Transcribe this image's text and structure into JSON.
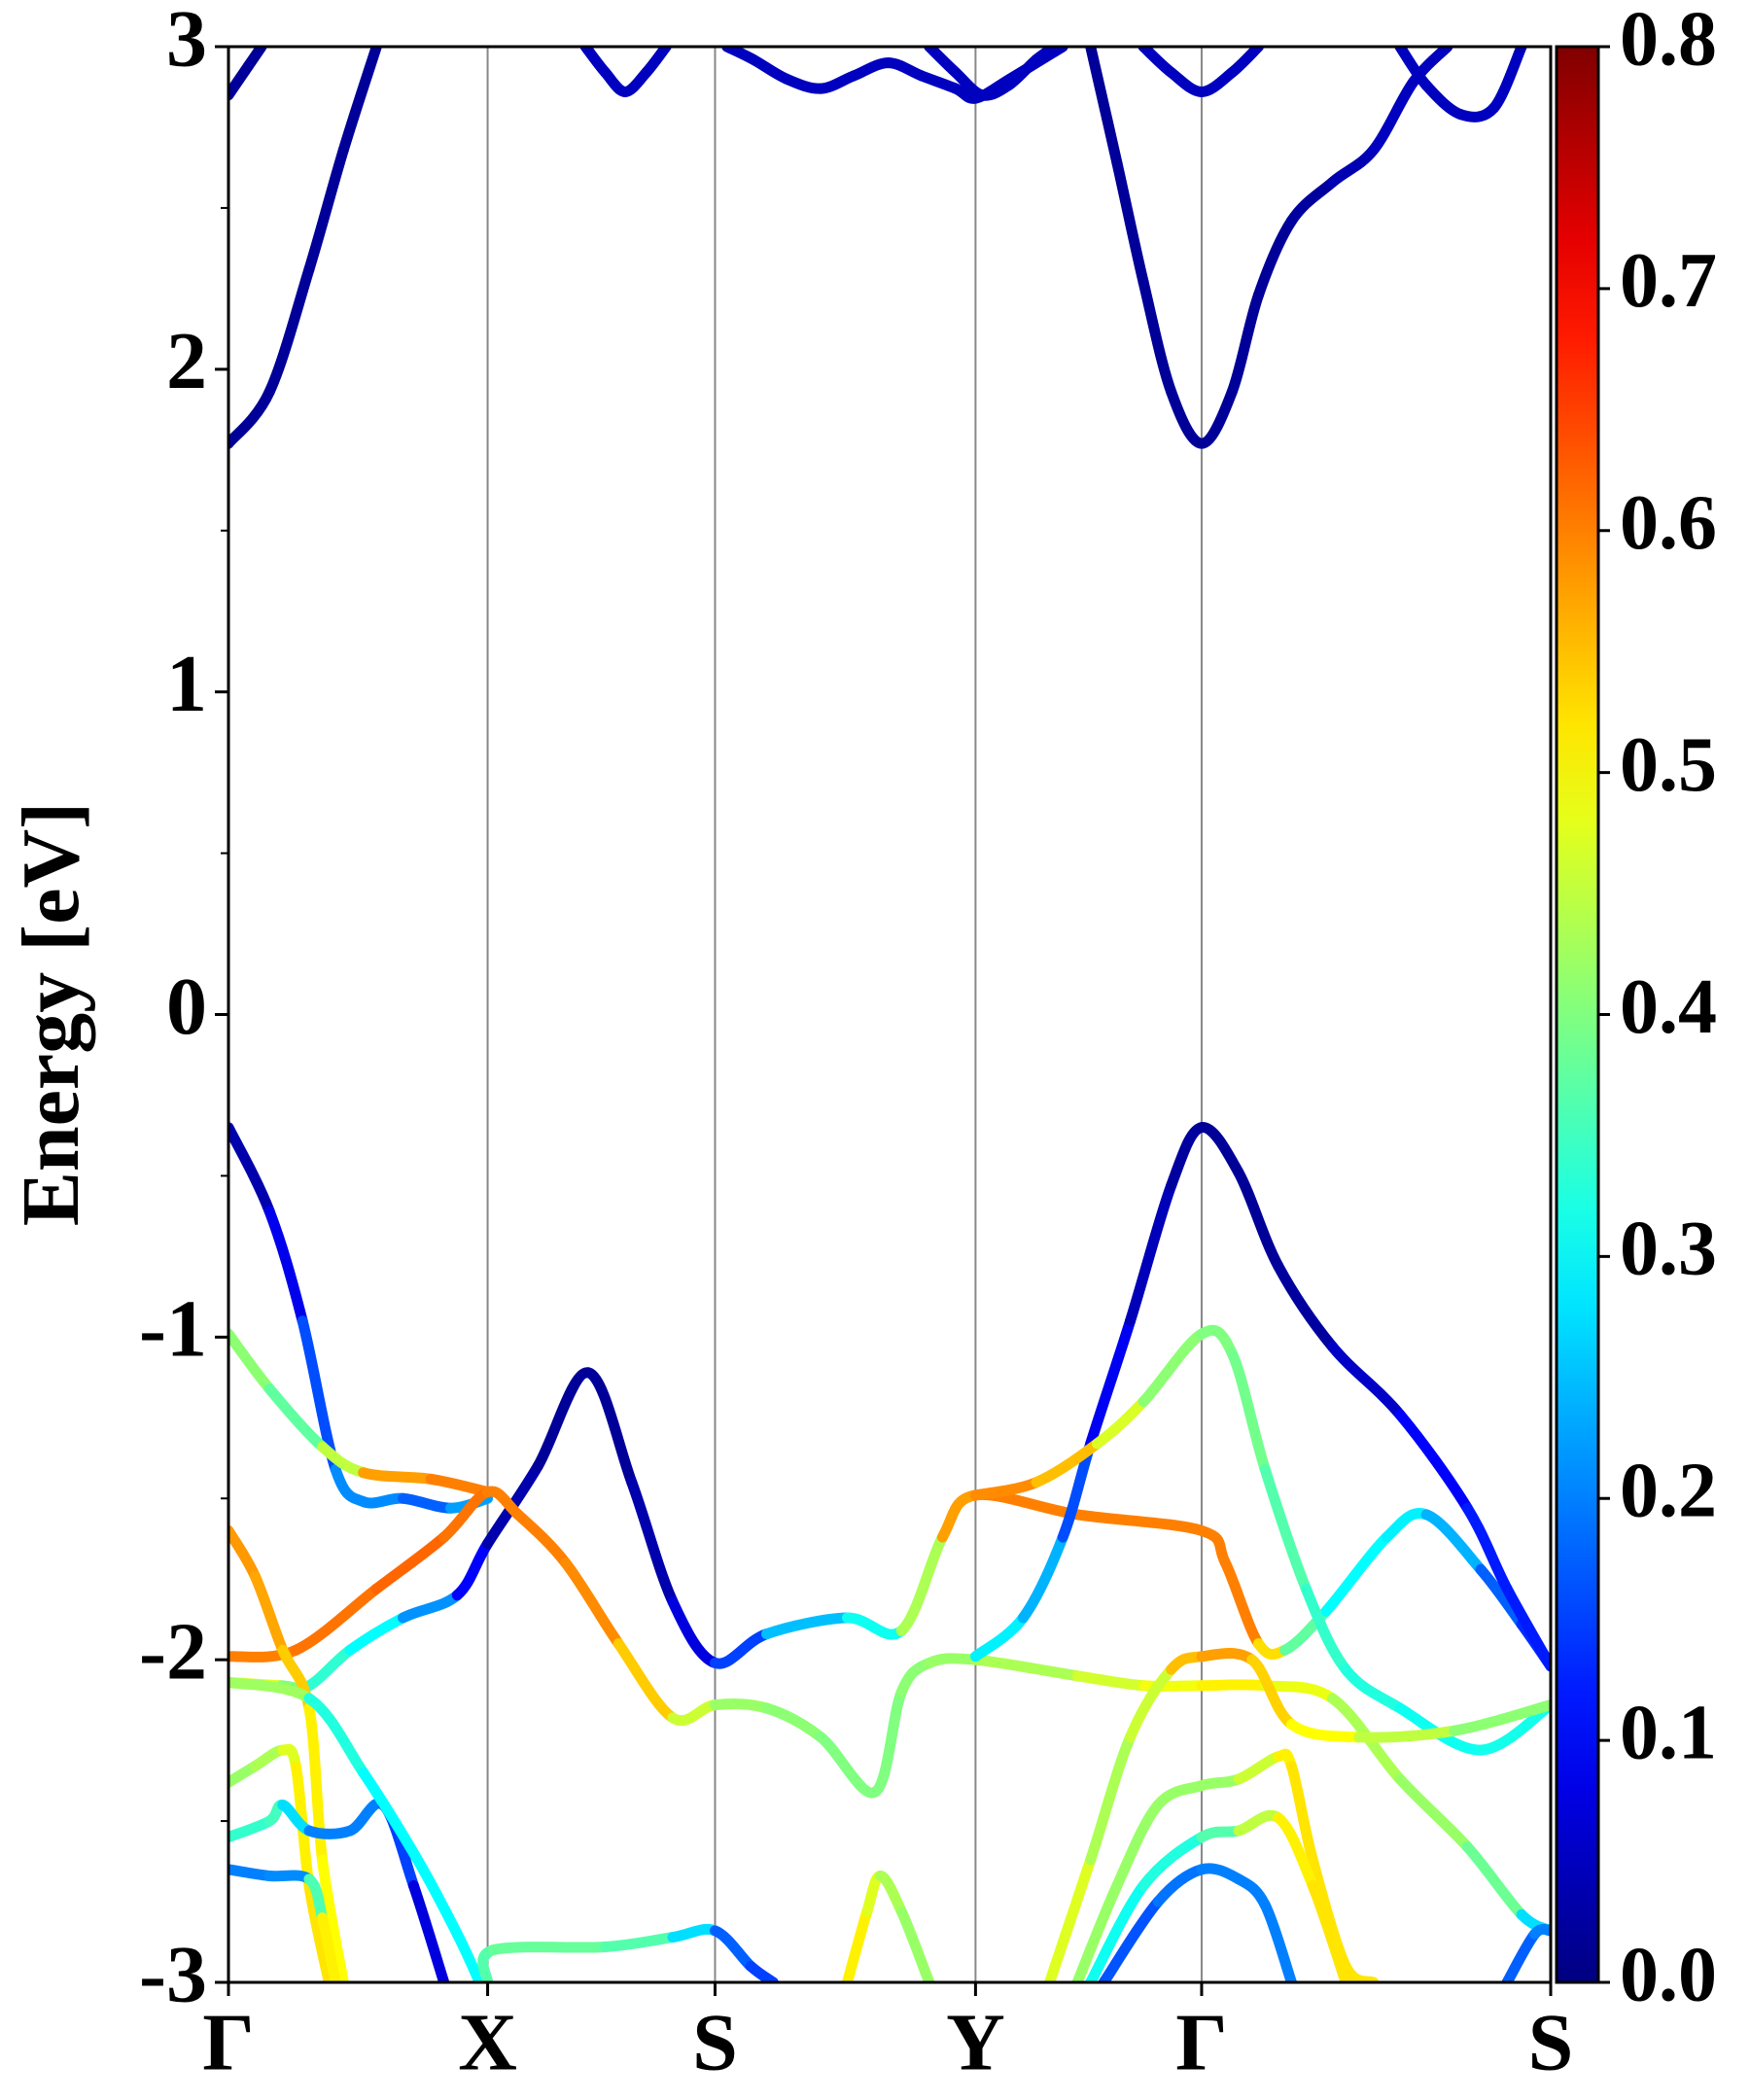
{
  "chart_data": {
    "type": "band-structure",
    "ylabel": "Energy [eV]",
    "xlim": [
      0,
      1
    ],
    "xticks": [
      {
        "value": 0,
        "label": "Γ"
      },
      {
        "value": 0.196,
        "label": "X"
      },
      {
        "value": 0.368,
        "label": "S"
      },
      {
        "value": 0.565,
        "label": "Y"
      },
      {
        "value": 0.736,
        "label": "Γ"
      },
      {
        "value": 1,
        "label": "S"
      }
    ],
    "ylim": [
      -3,
      3
    ],
    "yticks": [
      -3,
      -2,
      -1,
      0,
      1,
      2,
      3
    ],
    "yminorticks": [
      -2.5,
      -1.5,
      -0.5,
      0.5,
      1.5,
      2.5
    ],
    "grid": true,
    "colormap": "jet",
    "colorbar": {
      "lim": [
        0,
        0.8
      ],
      "ticks": [
        {
          "value": 0,
          "label": "0.0"
        },
        0.1,
        0.2,
        0.3,
        0.4,
        0.5,
        0.6,
        0.7,
        0.8
      ]
    },
    "series": [
      {
        "x": [
          0,
          0.031,
          0.061,
          0.087,
          0.112
        ],
        "values": [
          1.77,
          1.93,
          2.31,
          2.68,
          3.0
        ],
        "weights": [
          0.02,
          0.02,
          0.02,
          0.02,
          0.02
        ]
      },
      {
        "x": [
          0,
          0.015,
          0.025
        ],
        "values": [
          2.85,
          2.94,
          3.0
        ],
        "weights": [
          0.02,
          0.02,
          0.02
        ]
      },
      {
        "x": [
          0.27,
          0.285,
          0.3,
          0.316,
          0.331
        ],
        "values": [
          3.0,
          2.92,
          2.86,
          2.92,
          3.0
        ],
        "weights": [
          0.05,
          0.05,
          0.05,
          0.05,
          0.05
        ]
      },
      {
        "x": [
          0.377,
          0.397,
          0.422,
          0.448,
          0.473,
          0.499,
          0.524,
          0.55,
          0.565,
          0.591,
          0.631
        ],
        "values": [
          3.0,
          2.96,
          2.9,
          2.87,
          2.91,
          2.95,
          2.91,
          2.87,
          2.84,
          2.9,
          3.0
        ],
        "weights": [
          0.05,
          0.05,
          0.05,
          0.05,
          0.05,
          0.05,
          0.05,
          0.05,
          0.05,
          0.05,
          0.05
        ]
      },
      {
        "x": [
          0.53,
          0.55,
          0.57,
          0.59,
          0.611,
          0.625
        ],
        "values": [
          3.0,
          2.92,
          2.85,
          2.88,
          2.96,
          3.0
        ],
        "weights": [
          0.05,
          0.05,
          0.05,
          0.05,
          0.05,
          0.05
        ]
      },
      {
        "x": [
          0.652,
          0.672,
          0.692,
          0.713,
          0.736,
          0.759,
          0.779,
          0.804,
          0.835,
          0.866,
          0.896,
          0.922
        ],
        "values": [
          3.0,
          2.64,
          2.27,
          1.93,
          1.77,
          1.93,
          2.23,
          2.46,
          2.58,
          2.68,
          2.89,
          3.0
        ],
        "weights": [
          0.02,
          0.02,
          0.02,
          0.02,
          0.02,
          0.02,
          0.02,
          0.02,
          0.03,
          0.05,
          0.05,
          0.05
        ]
      },
      {
        "x": [
          0.692,
          0.713,
          0.736,
          0.759,
          0.779
        ],
        "values": [
          3.0,
          2.92,
          2.86,
          2.92,
          3.0
        ],
        "weights": [
          0.05,
          0.05,
          0.05,
          0.05,
          0.05
        ]
      },
      {
        "x": [
          0.886,
          0.906,
          0.932,
          0.957,
          0.978
        ],
        "values": [
          3.0,
          2.88,
          2.79,
          2.81,
          3.0
        ],
        "weights": [
          0.05,
          0.05,
          0.05,
          0.05,
          0.05
        ]
      },
      {
        "x": [
          0,
          0.031,
          0.056,
          0.081,
          0.102,
          0.132,
          0.168,
          0.196
        ],
        "values": [
          -0.35,
          -0.61,
          -0.95,
          -1.41,
          -1.51,
          -1.5,
          -1.53,
          -1.5
        ],
        "weights": [
          0.02,
          0.05,
          0.12,
          0.2,
          0.22,
          0.2,
          0.15,
          0.3
        ]
      },
      {
        "x": [
          0,
          0.031,
          0.071,
          0.102,
          0.153,
          0.196
        ],
        "values": [
          -0.99,
          -1.16,
          -1.34,
          -1.42,
          -1.44,
          -1.48
        ],
        "weights": [
          0.42,
          0.4,
          0.35,
          0.55,
          0.6,
          0.6
        ]
      },
      {
        "x": [
          0,
          0.04,
          0.061,
          0.092,
          0.132,
          0.173,
          0.196,
          0.234,
          0.272,
          0.305,
          0.336,
          0.368,
          0.407,
          0.468,
          0.509,
          0.54,
          0.565,
          0.642,
          0.736,
          0.754,
          0.779,
          0.799,
          0.83,
          0.876,
          0.906,
          0.947,
          0.978,
          1
        ],
        "values": [
          -2.07,
          -2.08,
          -2.08,
          -1.97,
          -1.87,
          -1.8,
          -1.64,
          -1.4,
          -1.11,
          -1.45,
          -1.82,
          -2.01,
          -1.92,
          -1.87,
          -1.91,
          -1.62,
          -1.49,
          -1.55,
          -1.6,
          -1.7,
          -1.95,
          -1.97,
          -1.85,
          -1.62,
          -1.55,
          -1.72,
          -1.89,
          -2.02
        ],
        "weights": [
          0.5,
          0.45,
          0.35,
          0.32,
          0.28,
          0.15,
          0.05,
          0.02,
          0.02,
          0.02,
          0.05,
          0.1,
          0.2,
          0.3,
          0.32,
          0.55,
          0.6,
          0.6,
          0.6,
          0.6,
          0.6,
          0.45,
          0.3,
          0.3,
          0.28,
          0.2,
          0.15,
          0.12
        ]
      },
      {
        "x": [
          0,
          0.051,
          0.112,
          0.163,
          0.196,
          0.219,
          0.255,
          0.295,
          0.336,
          0.368,
          0.407,
          0.448,
          0.489,
          0.509,
          0.53,
          0.565,
          0.642,
          0.692,
          0.736,
          0.784,
          0.835,
          0.886,
          0.937,
          0.978,
          1
        ],
        "values": [
          -1.99,
          -1.97,
          -1.78,
          -1.62,
          -1.48,
          -1.55,
          -1.7,
          -1.95,
          -2.18,
          -2.14,
          -2.15,
          -2.24,
          -2.41,
          -2.1,
          -2.01,
          -2.0,
          -2.05,
          -2.08,
          -2.08,
          -2.08,
          -2.12,
          -2.37,
          -2.58,
          -2.79,
          -2.84
        ],
        "weights": [
          0.6,
          0.6,
          0.62,
          0.62,
          0.6,
          0.6,
          0.6,
          0.58,
          0.5,
          0.42,
          0.42,
          0.4,
          0.4,
          0.4,
          0.42,
          0.42,
          0.45,
          0.48,
          0.5,
          0.52,
          0.45,
          0.42,
          0.42,
          0.35,
          0.2
        ]
      },
      {
        "x": [
          0,
          0.02,
          0.041,
          0.061,
          0.071,
          0.087
        ],
        "values": [
          -1.6,
          -1.74,
          -1.97,
          -2.15,
          -2.62,
          -3.0
        ],
        "weights": [
          0.58,
          0.58,
          0.56,
          0.52,
          0.5,
          0.5
        ]
      },
      {
        "x": [
          0,
          0.02,
          0.041,
          0.051,
          0.061,
          0.076
        ],
        "values": [
          -2.38,
          -2.33,
          -2.28,
          -2.33,
          -2.7,
          -3.0
        ],
        "weights": [
          0.42,
          0.42,
          0.45,
          0.5,
          0.52,
          0.52
        ]
      },
      {
        "x": [
          0,
          0.031,
          0.041,
          0.061,
          0.092,
          0.117,
          0.14,
          0.163
        ],
        "values": [
          -2.55,
          -2.5,
          -2.45,
          -2.53,
          -2.53,
          -2.45,
          -2.7,
          -3.0
        ],
        "weights": [
          0.33,
          0.35,
          0.35,
          0.2,
          0.2,
          0.2,
          0.1,
          0.05
        ]
      },
      {
        "x": [
          0,
          0.031,
          0.061,
          0.071,
          0.081
        ],
        "values": [
          -2.65,
          -2.67,
          -2.68,
          -2.8,
          -3.0
        ],
        "weights": [
          0.2,
          0.2,
          0.22,
          0.5,
          0.52
        ]
      },
      {
        "x": [
          0,
          0.061,
          0.102,
          0.143,
          0.173,
          0.19
        ],
        "values": [
          -2.07,
          -2.12,
          -2.35,
          -2.62,
          -2.85,
          -3.0
        ],
        "weights": [
          0.5,
          0.35,
          0.3,
          0.3,
          0.3,
          0.3
        ]
      },
      {
        "x": [
          0.196,
          0.2,
          0.285,
          0.336,
          0.368,
          0.395,
          0.412
        ],
        "values": [
          -3.0,
          -2.9,
          -2.89,
          -2.86,
          -2.84,
          -2.95,
          -3.0
        ],
        "weights": [
          0.35,
          0.38,
          0.38,
          0.35,
          0.2,
          0.15,
          0.15
        ]
      },
      {
        "x": [
          0.468,
          0.483,
          0.493,
          0.509,
          0.53
        ],
        "values": [
          -3.0,
          -2.78,
          -2.67,
          -2.78,
          -3.0
        ],
        "weights": [
          0.52,
          0.5,
          0.45,
          0.42,
          0.42
        ]
      },
      {
        "x": [
          0.565,
          0.601,
          0.631,
          0.652,
          0.682,
          0.713,
          0.736,
          0.764,
          0.794,
          0.835,
          0.886,
          0.937,
          0.967,
          1
        ],
        "values": [
          -1.99,
          -1.87,
          -1.62,
          -1.33,
          -0.95,
          -0.53,
          -0.35,
          -0.49,
          -0.78,
          -1.03,
          -1.24,
          -1.53,
          -1.78,
          -2.02
        ],
        "weights": [
          0.3,
          0.28,
          0.2,
          0.12,
          0.06,
          0.03,
          0.02,
          0.02,
          0.02,
          0.03,
          0.08,
          0.12,
          0.12,
          0.12
        ]
      },
      {
        "x": [
          0.565,
          0.611,
          0.657,
          0.692,
          0.736,
          0.759,
          0.784,
          0.815,
          0.845,
          0.886,
          0.947,
          1
        ],
        "values": [
          -1.49,
          -1.45,
          -1.33,
          -1.2,
          -0.99,
          -1.05,
          -1.41,
          -1.78,
          -2.03,
          -2.15,
          -2.28,
          -2.14
        ],
        "weights": [
          0.6,
          0.58,
          0.52,
          0.42,
          0.4,
          0.4,
          0.38,
          0.35,
          0.33,
          0.32,
          0.3,
          0.33
        ]
      },
      {
        "x": [
          0.621,
          0.652,
          0.682,
          0.713,
          0.736,
          0.774,
          0.804,
          0.855,
          0.927,
          1
        ],
        "values": [
          -3.0,
          -2.62,
          -2.24,
          -2.03,
          -1.99,
          -2.0,
          -2.2,
          -2.24,
          -2.22,
          -2.14
        ],
        "weights": [
          0.5,
          0.45,
          0.42,
          0.5,
          0.6,
          0.55,
          0.52,
          0.48,
          0.42,
          0.4
        ]
      },
      {
        "x": [
          0.642,
          0.672,
          0.703,
          0.736,
          0.764,
          0.794,
          0.804,
          0.82,
          0.845,
          0.866
        ],
        "values": [
          -3.0,
          -2.7,
          -2.45,
          -2.39,
          -2.37,
          -2.3,
          -2.33,
          -2.62,
          -2.95,
          -3.0
        ],
        "weights": [
          0.42,
          0.42,
          0.42,
          0.42,
          0.42,
          0.5,
          0.52,
          0.52,
          0.52,
          0.52
        ]
      },
      {
        "x": [
          0.652,
          0.692,
          0.736,
          0.764,
          0.794,
          0.82,
          0.845
        ],
        "values": [
          -3.0,
          -2.7,
          -2.55,
          -2.53,
          -2.49,
          -2.7,
          -3.0
        ],
        "weights": [
          0.3,
          0.32,
          0.33,
          0.4,
          0.5,
          0.52,
          0.52
        ]
      },
      {
        "x": [
          0.662,
          0.703,
          0.736,
          0.764,
          0.784,
          0.804
        ],
        "values": [
          -3.0,
          -2.75,
          -2.65,
          -2.68,
          -2.76,
          -3.0
        ],
        "weights": [
          0.15,
          0.18,
          0.2,
          0.2,
          0.2,
          0.2
        ]
      },
      {
        "x": [
          0.967,
          0.988,
          1
        ],
        "values": [
          -3.0,
          -2.85,
          -2.84
        ],
        "weights": [
          0.15,
          0.2,
          0.2
        ]
      }
    ]
  }
}
